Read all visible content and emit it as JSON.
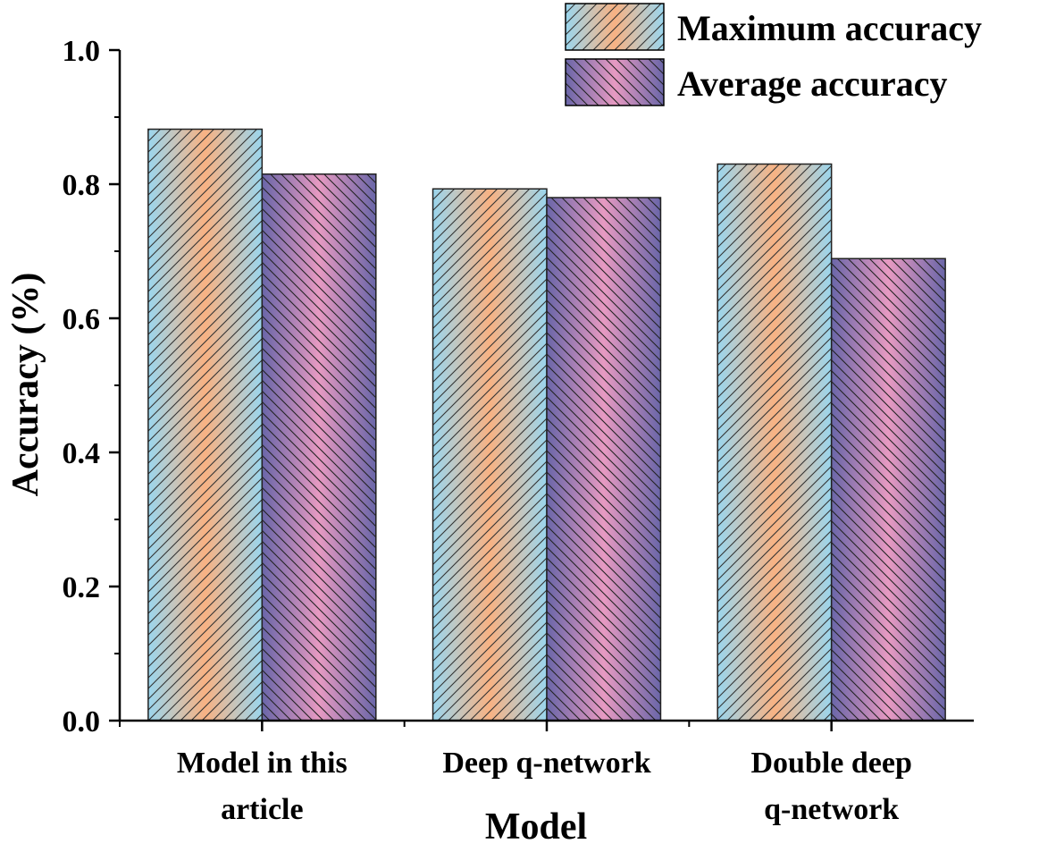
{
  "chart_data": {
    "type": "bar",
    "title": "",
    "xlabel": "Model",
    "ylabel": "Accuracy (%)",
    "ylim": [
      0.0,
      1.0
    ],
    "yticks": [
      "0.0",
      "0.2",
      "0.4",
      "0.6",
      "0.8",
      "1.0"
    ],
    "ytick_values": [
      0.0,
      0.2,
      0.4,
      0.6,
      0.8,
      1.0
    ],
    "grid": false,
    "legend_position": "top-right",
    "categories": [
      [
        "Model in this",
        "article"
      ],
      [
        "Deep q-network"
      ],
      [
        "Double deep",
        "q-network"
      ]
    ],
    "series": [
      {
        "name": "Maximum accuracy",
        "values": [
          0.882,
          0.793,
          0.83
        ],
        "colors": {
          "edge": "#9ad6ee",
          "center": "#f8b283",
          "hatch": "#333333"
        }
      },
      {
        "name": "Average accuracy",
        "values": [
          0.815,
          0.78,
          0.689
        ],
        "colors": {
          "edge": "#6a66a8",
          "center": "#e79ac2",
          "hatch": "#222222"
        }
      }
    ]
  }
}
